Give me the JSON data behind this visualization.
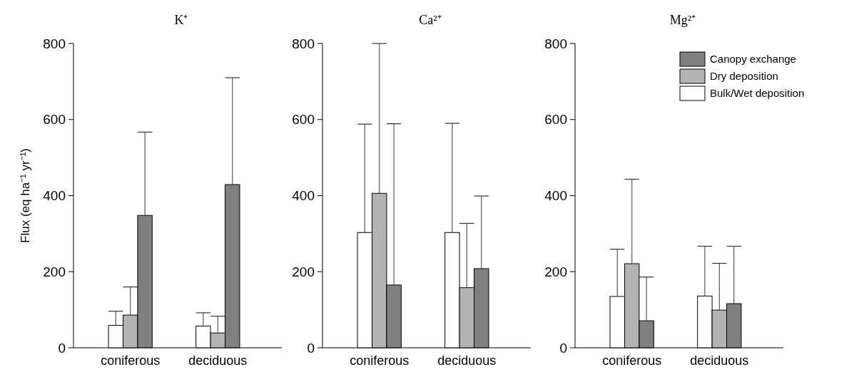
{
  "chart_data": [
    {
      "type": "bar",
      "title": "K⁺",
      "ylabel": "Flux (eq ha⁻¹ yr⁻¹)",
      "categories": [
        "coniferous",
        "deciduous"
      ],
      "ylim": [
        0,
        800
      ],
      "yticks": [
        0,
        200,
        400,
        600,
        800
      ],
      "legend": false,
      "series": [
        {
          "color": "#ffffff",
          "values": [
            59,
            57
          ],
          "errors": [
            [
              59,
              96
            ],
            [
              57,
              92
            ]
          ]
        },
        {
          "color": "#b3b3b3",
          "values": [
            86,
            39
          ],
          "errors": [
            [
              86,
              160
            ],
            [
              39,
              83
            ]
          ]
        },
        {
          "color": "#808080",
          "values": [
            348,
            429
          ],
          "errors": [
            [
              348,
              567
            ],
            [
              429,
              710
            ]
          ]
        }
      ]
    },
    {
      "type": "bar",
      "title": "Ca²⁺",
      "categories": [
        "coniferous",
        "deciduous"
      ],
      "ylim": [
        0,
        800
      ],
      "yticks": [
        0,
        200,
        400,
        600,
        800
      ],
      "legend": false,
      "series": [
        {
          "color": "#ffffff",
          "values": [
            303,
            303
          ],
          "errors": [
            [
              303,
              588
            ],
            [
              303,
              590
            ]
          ]
        },
        {
          "color": "#b3b3b3",
          "values": [
            406,
            158
          ],
          "errors": [
            [
              406,
              800
            ],
            [
              158,
              327
            ]
          ]
        },
        {
          "color": "#808080",
          "values": [
            165,
            208
          ],
          "errors": [
            [
              165,
              589
            ],
            [
              208,
              399
            ]
          ]
        }
      ]
    },
    {
      "type": "bar",
      "title": "Mg²⁺",
      "categories": [
        "coniferous",
        "deciduous"
      ],
      "ylim": [
        0,
        800
      ],
      "yticks": [
        0,
        200,
        400,
        600,
        800
      ],
      "legend": "top right",
      "series": [
        {
          "name": "Bulk/Wet deposition",
          "color": "#ffffff",
          "values": [
            135,
            136
          ],
          "errors": [
            [
              135,
              259
            ],
            [
              136,
              267
            ]
          ]
        },
        {
          "name": "Dry deposition",
          "color": "#b3b3b3",
          "values": [
            221,
            99
          ],
          "errors": [
            [
              221,
              443
            ],
            [
              99,
              222
            ]
          ]
        },
        {
          "name": "Canopy exchange",
          "color": "#808080",
          "values": [
            71,
            116
          ],
          "errors": [
            [
              71,
              186
            ],
            [
              116,
              267
            ]
          ]
        }
      ]
    }
  ]
}
